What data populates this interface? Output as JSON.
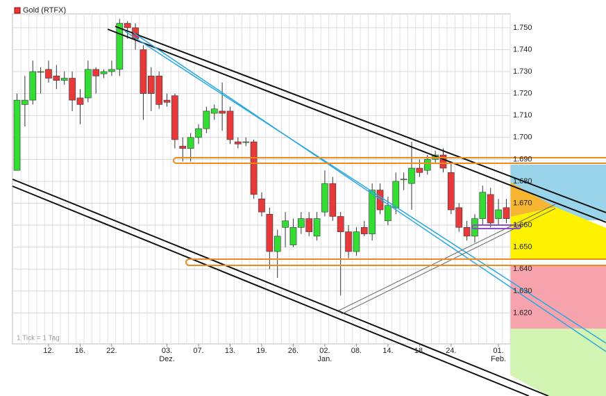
{
  "chart_data": {
    "type": "candlestick",
    "title": "Gold (RTFX)",
    "note": "1 Tick = 1 Tag",
    "up_color": "#33dd33",
    "down_color": "#e8393a",
    "categories": [
      null,
      null,
      null,
      null,
      "12.",
      null,
      null,
      null,
      "16.",
      null,
      null,
      null,
      "22.",
      null,
      null,
      null,
      null,
      null,
      null,
      "03.",
      null,
      null,
      null,
      "07.",
      null,
      null,
      null,
      "13.",
      null,
      null,
      null,
      "19.",
      null,
      null,
      null,
      "26.",
      null,
      null,
      null,
      "02.",
      null,
      null,
      null,
      "08.",
      null,
      null,
      null,
      "14.",
      null,
      null,
      null,
      "18.",
      null,
      null,
      null,
      "24.",
      null,
      null,
      null,
      null,
      null,
      "01.",
      null
    ],
    "months": [
      null,
      null,
      null,
      null,
      null,
      null,
      null,
      null,
      null,
      null,
      null,
      null,
      null,
      null,
      null,
      null,
      null,
      null,
      null,
      "Dez.",
      null,
      null,
      null,
      null,
      null,
      null,
      null,
      null,
      null,
      null,
      null,
      null,
      null,
      null,
      null,
      null,
      null,
      null,
      null,
      "Jan.",
      null,
      null,
      null,
      null,
      null,
      null,
      null,
      null,
      null,
      null,
      null,
      null,
      null,
      null,
      null,
      null,
      null,
      null,
      null,
      null,
      null,
      "Feb.",
      null
    ],
    "open": [
      1.685,
      1.715,
      1.717,
      1.73,
      1.731,
      1.728,
      1.726,
      1.727,
      1.718,
      1.718,
      1.731,
      1.729,
      1.73,
      1.731,
      1.752,
      1.75,
      1.74,
      1.728,
      1.728,
      1.717,
      1.719,
      1.696,
      1.695,
      1.7,
      1.704,
      1.711,
      1.712,
      1.712,
      1.698,
      1.698,
      1.698,
      1.672,
      1.665,
      1.648,
      1.659,
      1.651,
      1.659,
      1.663,
      1.655,
      1.666,
      1.679,
      1.664,
      1.657,
      1.648,
      1.659,
      1.656,
      1.676,
      1.662,
      1.668,
      1.681,
      1.679,
      1.686,
      1.685,
      1.69,
      1.692,
      1.684,
      1.668,
      1.659,
      1.655,
      1.663,
      1.674,
      1.663,
      1.668
    ],
    "high": [
      1.72,
      1.728,
      1.735,
      1.732,
      1.735,
      1.733,
      1.73,
      1.73,
      1.722,
      1.735,
      1.732,
      1.731,
      1.735,
      1.754,
      1.753,
      1.752,
      1.742,
      1.732,
      1.73,
      1.72,
      1.72,
      1.7,
      1.702,
      1.706,
      1.714,
      1.715,
      1.725,
      1.714,
      1.7,
      1.7,
      1.699,
      1.675,
      1.668,
      1.658,
      1.666,
      1.663,
      1.666,
      1.666,
      1.666,
      1.685,
      1.682,
      1.666,
      1.66,
      1.659,
      1.662,
      1.679,
      1.679,
      1.673,
      1.684,
      1.684,
      1.698,
      1.69,
      1.692,
      1.694,
      1.695,
      1.688,
      1.67,
      1.662,
      1.665,
      1.678,
      1.677,
      1.672,
      1.672
    ],
    "low": [
      1.685,
      1.705,
      1.715,
      1.72,
      1.725,
      1.722,
      1.724,
      1.712,
      1.706,
      1.716,
      1.72,
      1.727,
      1.728,
      1.728,
      1.745,
      1.74,
      1.708,
      1.712,
      1.713,
      1.714,
      1.695,
      1.689,
      1.689,
      1.697,
      1.702,
      1.708,
      1.703,
      1.697,
      1.695,
      1.696,
      1.672,
      1.664,
      1.64,
      1.636,
      1.65,
      1.65,
      1.656,
      1.655,
      1.653,
      1.664,
      1.662,
      1.628,
      1.645,
      1.646,
      1.655,
      1.653,
      1.665,
      1.66,
      1.665,
      1.676,
      1.667,
      1.682,
      1.683,
      1.688,
      1.684,
      1.665,
      1.657,
      1.653,
      1.652,
      1.66,
      1.659,
      1.66,
      1.661
    ],
    "close": [
      1.717,
      1.717,
      1.73,
      1.73,
      1.727,
      1.726,
      1.727,
      1.717,
      1.715,
      1.731,
      1.728,
      1.73,
      1.731,
      1.752,
      1.75,
      1.745,
      1.72,
      1.72,
      1.715,
      1.716,
      1.699,
      1.695,
      1.7,
      1.704,
      1.712,
      1.713,
      1.711,
      1.699,
      1.697,
      1.698,
      1.674,
      1.666,
      1.648,
      1.655,
      1.662,
      1.659,
      1.663,
      1.657,
      1.663,
      1.679,
      1.664,
      1.657,
      1.648,
      1.657,
      1.656,
      1.676,
      1.667,
      1.669,
      1.68,
      1.681,
      1.686,
      1.684,
      1.69,
      1.692,
      1.686,
      1.667,
      1.659,
      1.655,
      1.663,
      1.675,
      1.661,
      1.667,
      1.663
    ],
    "ylim": [
      1.6059,
      1.7563
    ],
    "yticks": [
      {
        "value": 1.62,
        "label": "1.620"
      },
      {
        "value": 1.63,
        "label": "1.630"
      },
      {
        "value": 1.64,
        "label": "1.640"
      },
      {
        "value": 1.65,
        "label": "1.650"
      },
      {
        "value": 1.66,
        "label": "1.660"
      },
      {
        "value": 1.67,
        "label": "1.670"
      },
      {
        "value": 1.68,
        "label": "1.680"
      },
      {
        "value": 1.69,
        "label": "1.690"
      },
      {
        "value": 1.7,
        "label": "1.700"
      },
      {
        "value": 1.71,
        "label": "1.710"
      },
      {
        "value": 1.72,
        "label": "1.720"
      },
      {
        "value": 1.73,
        "label": "1.730"
      },
      {
        "value": 1.74,
        "label": "1.740"
      },
      {
        "value": 1.75,
        "label": "1.750"
      }
    ],
    "grid": true
  }
}
